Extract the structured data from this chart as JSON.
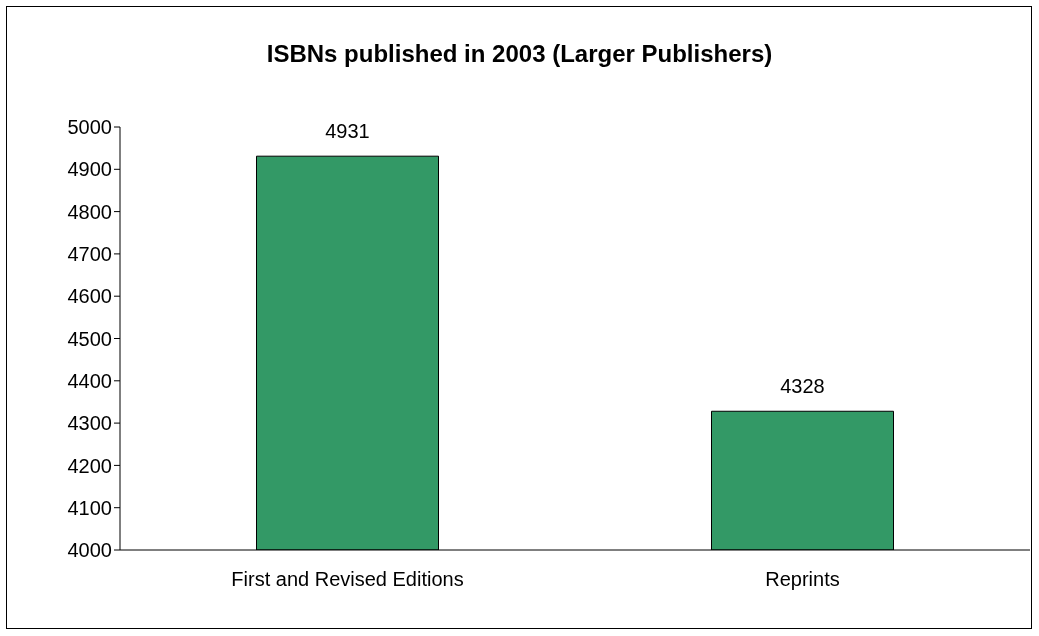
{
  "chart_data": {
    "type": "bar",
    "title": "ISBNs published in 2003 (Larger Publishers)",
    "categories": [
      "First and Revised Editions",
      "Reprints"
    ],
    "values": [
      4931,
      4328
    ],
    "color": "#339966",
    "ylim": [
      4000,
      5000
    ],
    "yticks": [
      4000,
      4100,
      4200,
      4300,
      4400,
      4500,
      4600,
      4700,
      4800,
      4900,
      5000
    ],
    "data_labels": true
  }
}
